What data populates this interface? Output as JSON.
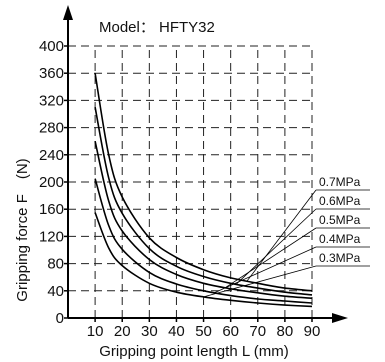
{
  "chart_data": {
    "type": "line",
    "title": "Model： HFTY32",
    "xlabel": "Gripping point length L (mm)",
    "ylabel": "Gripping force F　(N)",
    "xlim": [
      0,
      90
    ],
    "ylim": [
      0,
      400
    ],
    "xticks": [
      "10",
      "20",
      "30",
      "40",
      "50",
      "60",
      "70",
      "80",
      "90"
    ],
    "yticks": [
      "0",
      "40",
      "80",
      "120",
      "160",
      "200",
      "240",
      "280",
      "320",
      "360",
      "400"
    ],
    "grid": true,
    "legend": "right, leader lines to curves",
    "series": [
      {
        "name": "0.7MPa",
        "x": [
          10,
          15,
          20,
          30,
          40,
          50,
          60,
          70,
          80,
          90
        ],
        "y": [
          360,
          240,
          178,
          118,
          89,
          71,
          59,
          51,
          44,
          40
        ]
      },
      {
        "name": "0.6MPa",
        "x": [
          10,
          15,
          20,
          30,
          40,
          50,
          60,
          70,
          80,
          90
        ],
        "y": [
          310,
          206,
          154,
          102,
          76,
          61,
          51,
          44,
          38,
          34
        ]
      },
      {
        "name": "0.5MPa",
        "x": [
          10,
          15,
          20,
          30,
          40,
          50,
          60,
          70,
          80,
          90
        ],
        "y": [
          260,
          172,
          128,
          86,
          64,
          51,
          43,
          37,
          32,
          29
        ]
      },
      {
        "name": "0.4MPa",
        "x": [
          10,
          15,
          20,
          30,
          40,
          50,
          60,
          70,
          80,
          90
        ],
        "y": [
          205,
          136,
          101,
          67,
          50,
          40,
          33,
          28,
          25,
          22
        ]
      },
      {
        "name": "0.3MPa",
        "x": [
          10,
          15,
          20,
          30,
          40,
          50,
          60,
          70,
          80,
          90
        ],
        "y": [
          155,
          103,
          77,
          51,
          38,
          31,
          26,
          22,
          19,
          17
        ]
      }
    ]
  }
}
